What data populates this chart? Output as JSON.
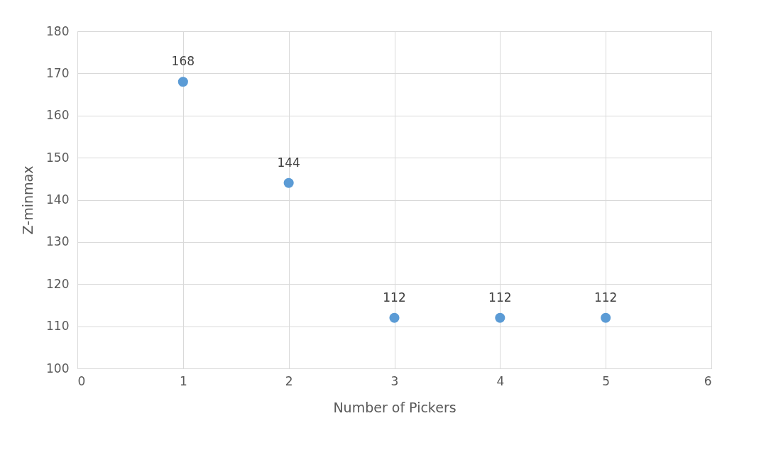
{
  "chart_data": {
    "type": "scatter",
    "xlabel": "Number of Pickers",
    "ylabel": "Z-minmax",
    "x": [
      1,
      2,
      3,
      4,
      5
    ],
    "series": [
      {
        "color": "#5b9bd5",
        "values": [
          168,
          144,
          112,
          112,
          112
        ]
      }
    ],
    "xlim": [
      0,
      6
    ],
    "xticks": [
      0,
      1,
      2,
      3,
      4,
      5,
      6
    ],
    "ylim": [
      100,
      180
    ],
    "yticks": [
      100,
      110,
      120,
      130,
      140,
      150,
      160,
      170,
      180
    ],
    "grid": true,
    "data_labels": true,
    "marker": "circle"
  }
}
